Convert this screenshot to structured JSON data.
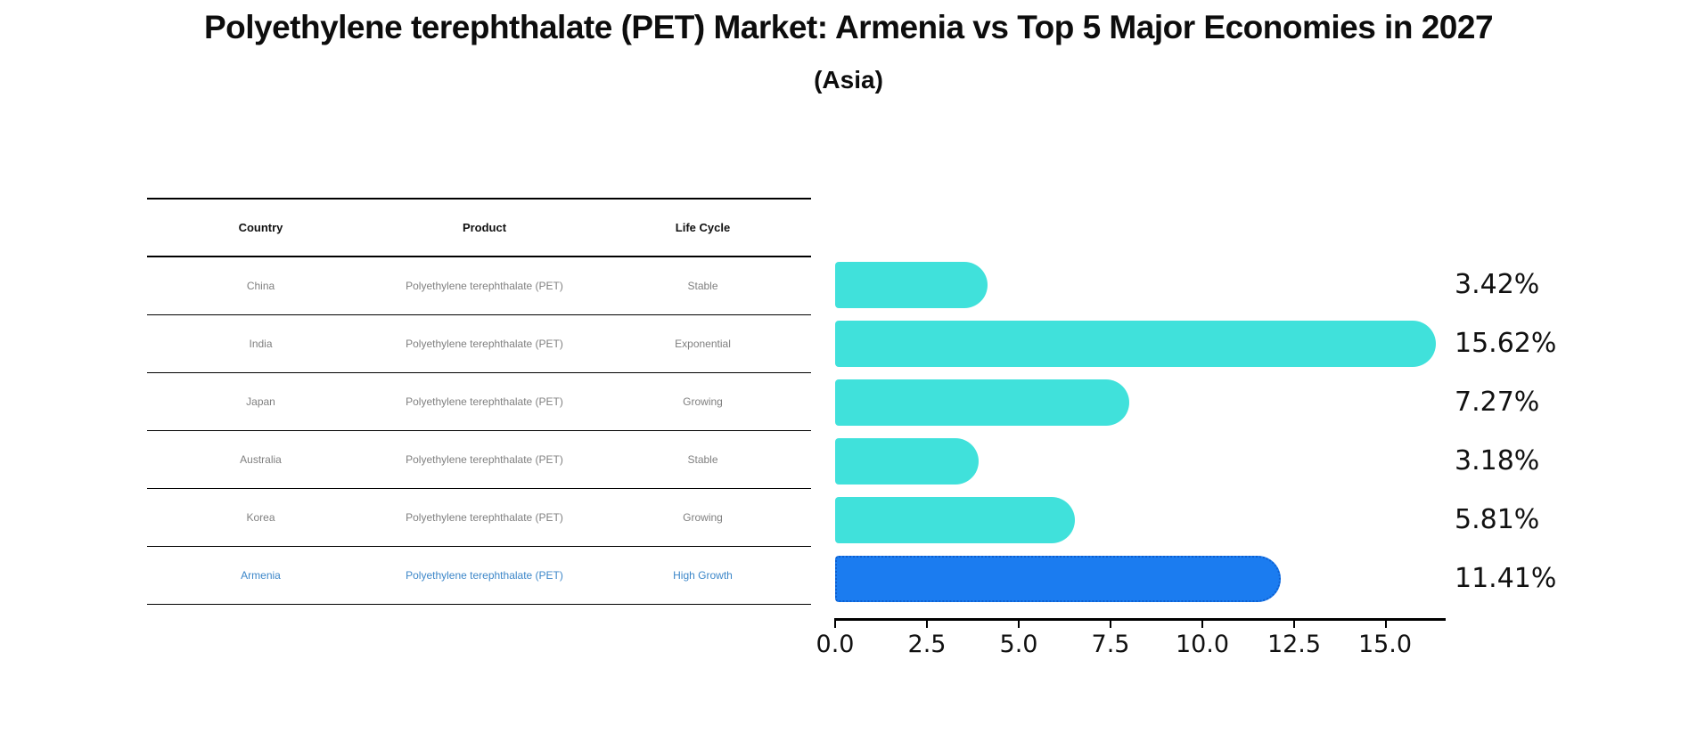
{
  "title": "Polyethylene terephthalate (PET) Market: Armenia vs Top 5 Major Economies in 2027",
  "subtitle": "(Asia)",
  "table": {
    "headers": [
      "Country",
      "Product",
      "Life Cycle"
    ],
    "rows": [
      {
        "country": "China",
        "product": "Polyethylene terephthalate (PET)",
        "life_cycle": "Stable"
      },
      {
        "country": "India",
        "product": "Polyethylene terephthalate (PET)",
        "life_cycle": "Exponential"
      },
      {
        "country": "Japan",
        "product": "Polyethylene terephthalate (PET)",
        "life_cycle": "Growing"
      },
      {
        "country": "Australia",
        "product": "Polyethylene terephthalate (PET)",
        "life_cycle": "Stable"
      },
      {
        "country": "Korea",
        "product": "Polyethylene terephthalate (PET)",
        "life_cycle": "Growing"
      },
      {
        "country": "Armenia",
        "product": "Polyethylene terephthalate (PET)",
        "life_cycle": "High Growth"
      }
    ],
    "highlight_row_index": 5
  },
  "chart_data": {
    "type": "bar",
    "orientation": "horizontal",
    "categories": [
      "China",
      "India",
      "Japan",
      "Australia",
      "Korea",
      "Armenia"
    ],
    "values": [
      3.42,
      15.62,
      7.27,
      3.18,
      5.81,
      11.41
    ],
    "labels": [
      "3.42%",
      "15.62%",
      "7.27%",
      "3.18%",
      "5.81%",
      "11.41%"
    ],
    "x_ticks": [
      "0.0",
      "2.5",
      "5.0",
      "7.5",
      "10.0",
      "12.5",
      "15.0"
    ],
    "xlim": [
      0,
      16.6
    ],
    "grid": false,
    "legend": "none",
    "highlight_index": 5,
    "title": "Polyethylene terephthalate (PET) Market: Armenia vs Top 5 Major Economies in 2027 (Asia)",
    "xlabel": "",
    "ylabel": ""
  },
  "colors": {
    "bar": "#40E1DB",
    "highlight_bar": "#1B7CF0",
    "highlight_bar_border": "#0D5FD0",
    "highlight_text": "#3D87C9",
    "row_text": "#808080",
    "header_text": "#111111",
    "axis": "#000000"
  }
}
